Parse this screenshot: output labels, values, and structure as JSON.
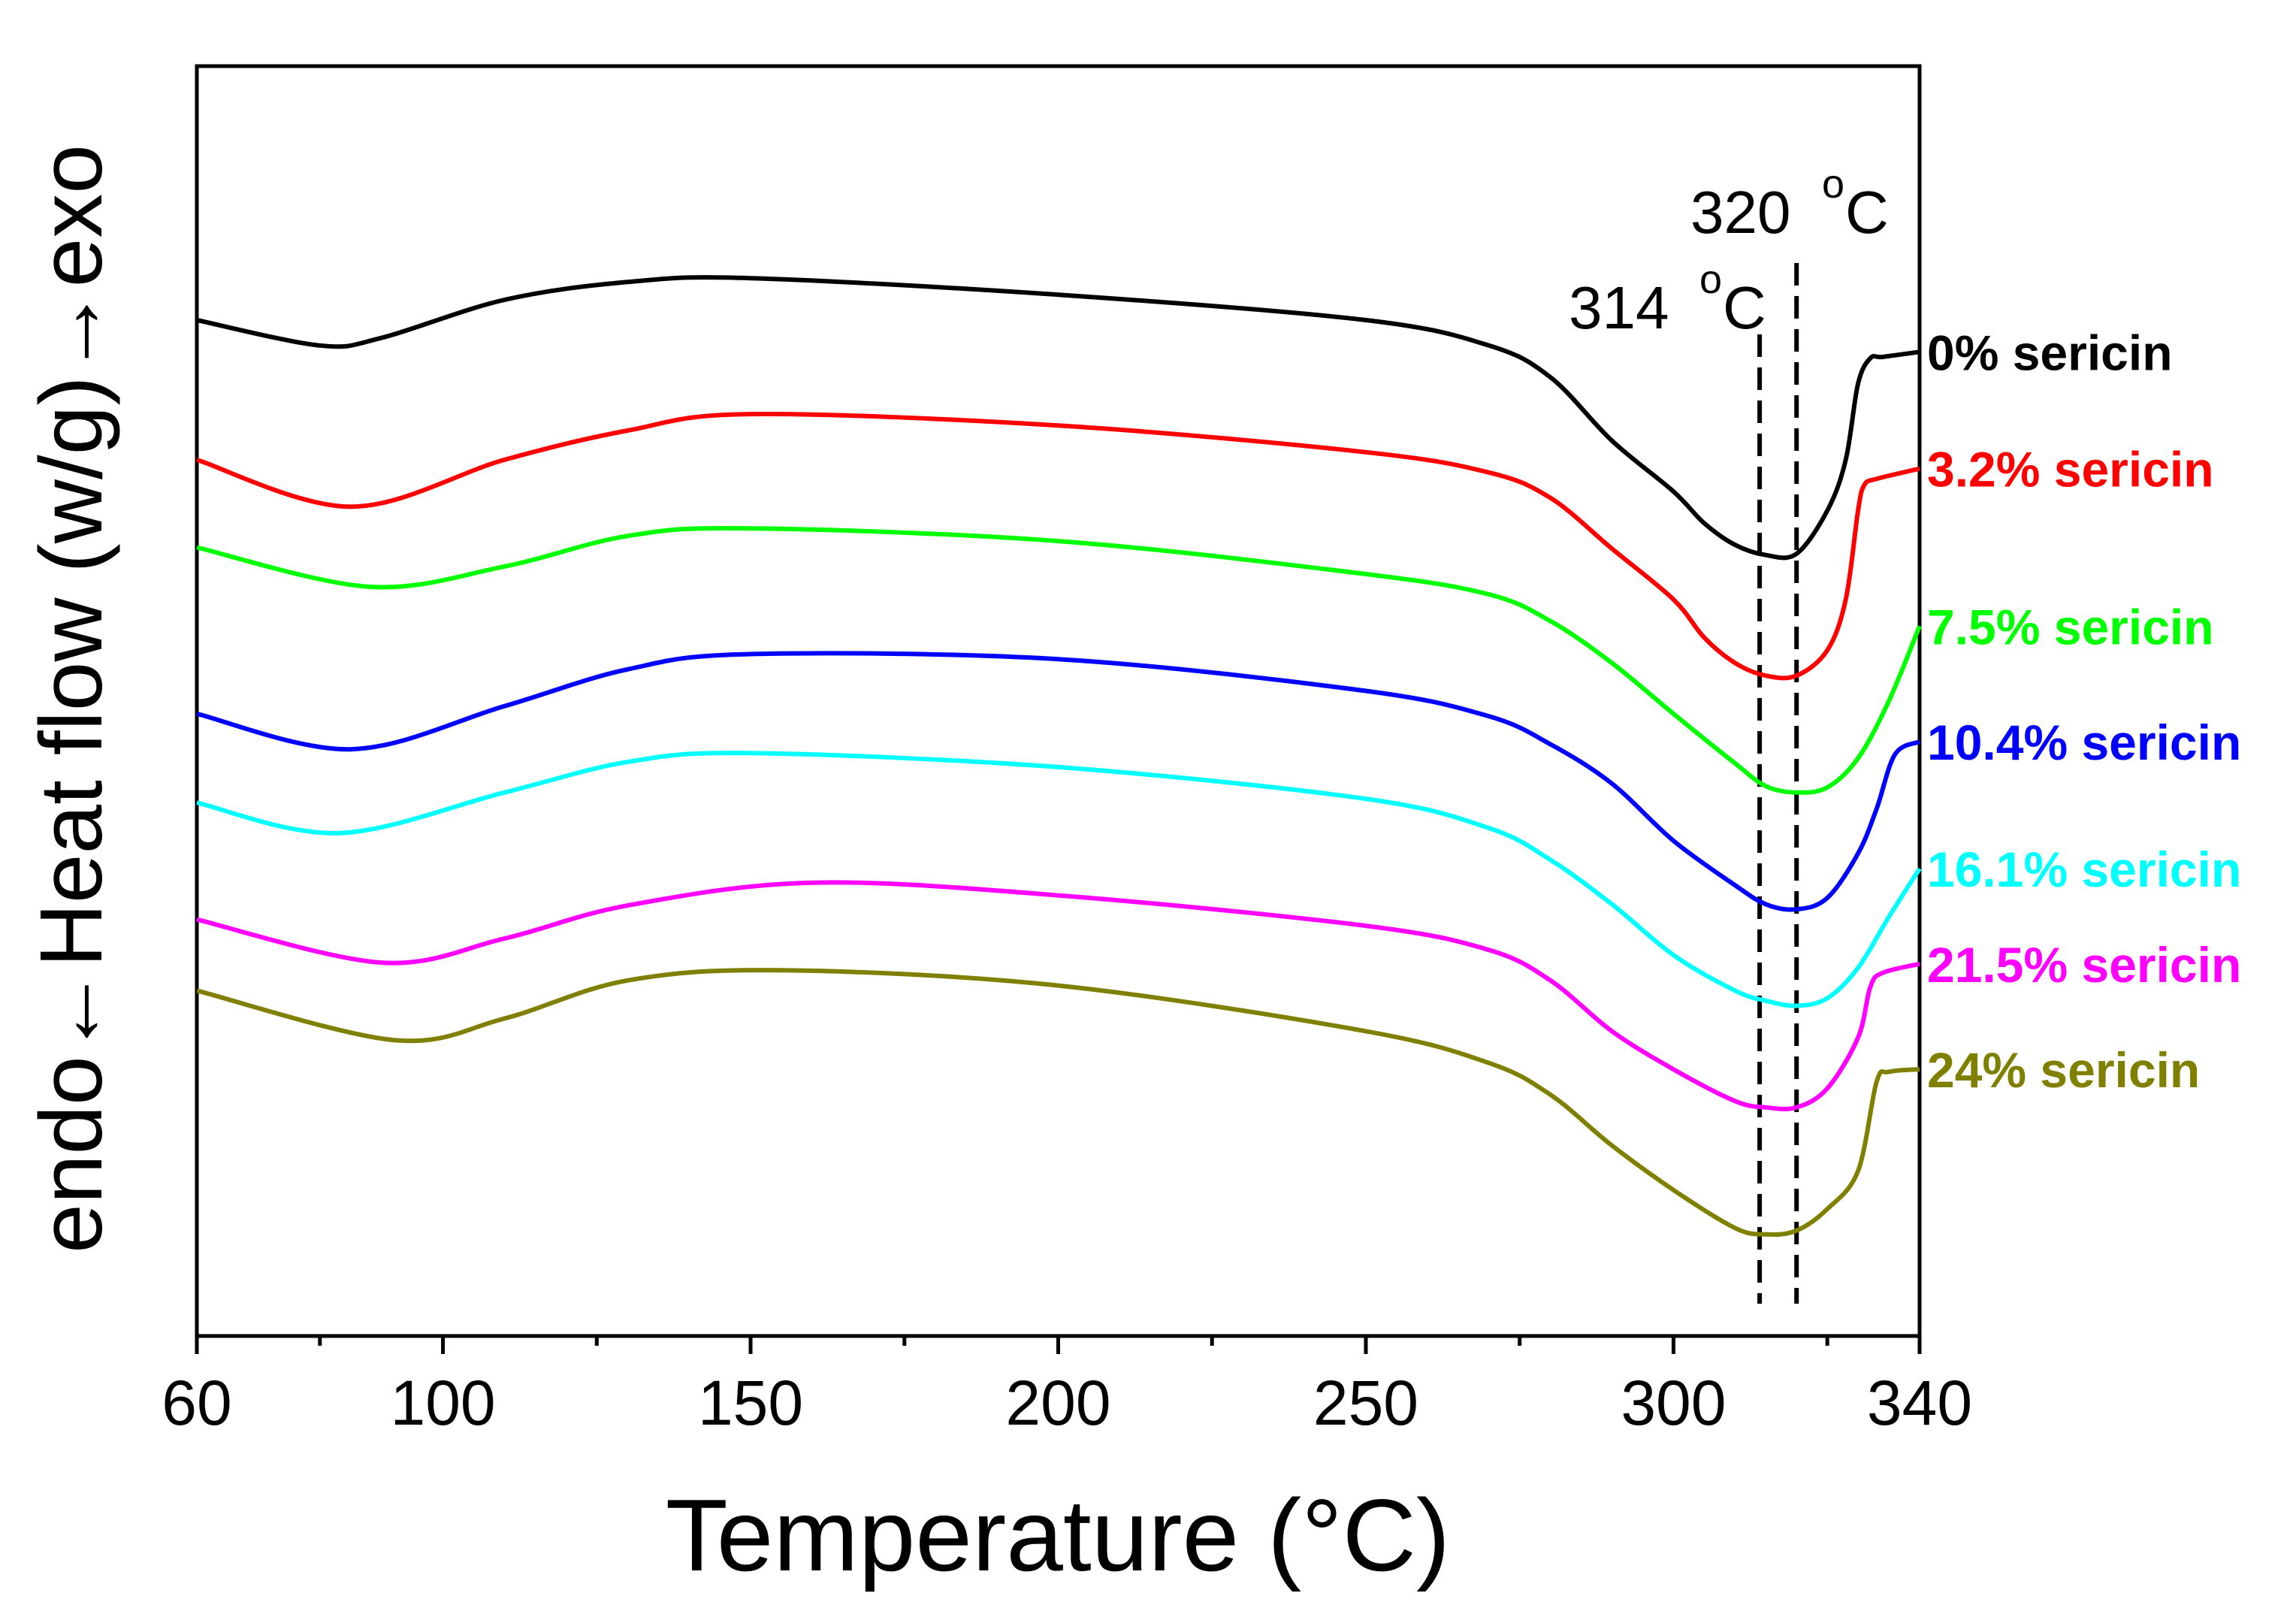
{
  "chart_data": {
    "type": "line",
    "title": "",
    "xlabel": "Temperature (°C)",
    "ylabel": "endo←Heat flow (w/g)→exo",
    "xlim": [
      60,
      340
    ],
    "ylim": [
      0,
      100
    ],
    "y_ticks_labeled": false,
    "x_ticks": [
      60,
      100,
      150,
      200,
      250,
      300,
      340
    ],
    "x_tick_labels": [
      "60",
      "100",
      "150",
      "200",
      "250",
      "300",
      "340"
    ],
    "x_minor_ticks": [
      80,
      125,
      175,
      225,
      275,
      325
    ],
    "grid": false,
    "legend": "right, inline labels",
    "annotations": [
      {
        "label": "314",
        "unit_sup": "o",
        "unit": "C",
        "x": 314,
        "style": "dashed"
      },
      {
        "label": "320",
        "unit_sup": "o",
        "unit": "C",
        "x": 320,
        "style": "dashed"
      }
    ],
    "series": [
      {
        "name": "0% sericin",
        "color": "#000000",
        "x": [
          60,
          80,
          90,
          110,
          130,
          150,
          200,
          250,
          270,
          280,
          290,
          300,
          305,
          310,
          315,
          320,
          325,
          328,
          330,
          332,
          334,
          340
        ],
        "y": [
          80,
          78.0,
          78.6,
          81.6,
          83.0,
          83.3,
          82.0,
          80.0,
          78.0,
          75.5,
          70.5,
          66.5,
          64.0,
          62.3,
          61.5,
          61.6,
          65.0,
          69.0,
          75.0,
          77.0,
          77.1,
          77.5
        ]
      },
      {
        "name": "3.2% sericin",
        "color": "#ff0000",
        "x": [
          60,
          85,
          110,
          130,
          150,
          200,
          250,
          270,
          280,
          290,
          300,
          305,
          310,
          315,
          320,
          325,
          328,
          330,
          331,
          333,
          340
        ],
        "y": [
          69,
          65.3,
          69.0,
          71.3,
          72.6,
          71.7,
          69.6,
          68.0,
          66.0,
          62.0,
          58.0,
          55.0,
          53.0,
          52.0,
          52.0,
          54.0,
          58.0,
          65.0,
          67.0,
          67.5,
          68.3
        ]
      },
      {
        "name": "7.5% sericin",
        "color": "#00ff00",
        "x": [
          60,
          88,
          110,
          130,
          150,
          200,
          250,
          270,
          280,
          290,
          300,
          310,
          315,
          320,
          325,
          330,
          335,
          340
        ],
        "y": [
          62.1,
          59.0,
          60.6,
          63.0,
          63.6,
          62.6,
          60.0,
          58.4,
          56.3,
          53.0,
          49.0,
          45.1,
          43.3,
          42.8,
          43.2,
          45.5,
          50.0,
          55.9
        ]
      },
      {
        "name": "10.4% sericin",
        "color": "#0000ff",
        "x": [
          60,
          85,
          110,
          130,
          150,
          200,
          250,
          270,
          280,
          290,
          300,
          310,
          315,
          320,
          325,
          330,
          333,
          336,
          340
        ],
        "y": [
          49.0,
          46.2,
          49.6,
          52.5,
          53.7,
          53.3,
          50.8,
          48.8,
          46.6,
          43.5,
          39.0,
          35.5,
          34.0,
          33.6,
          34.5,
          38.0,
          41.5,
          45.8,
          46.8
        ]
      },
      {
        "name": "16.1% sericin",
        "color": "#00ffff",
        "x": [
          60,
          83,
          110,
          130,
          150,
          200,
          250,
          270,
          280,
          290,
          300,
          310,
          315,
          320,
          325,
          330,
          335,
          340
        ],
        "y": [
          42.0,
          39.6,
          42.8,
          45.2,
          45.9,
          44.8,
          42.3,
          40.0,
          37.5,
          34.0,
          30.0,
          27.2,
          26.4,
          26.0,
          26.6,
          29.0,
          33.0,
          36.8
        ]
      },
      {
        "name": "21.5% sericin",
        "color": "#ff00ff",
        "x": [
          60,
          90,
          110,
          130,
          160,
          200,
          250,
          270,
          280,
          290,
          300,
          310,
          315,
          320,
          325,
          330,
          332,
          334,
          340
        ],
        "y": [
          32.8,
          29.4,
          31.3,
          33.9,
          35.7,
          34.7,
          32.3,
          30.4,
          28.0,
          24.0,
          21.0,
          18.5,
          18.0,
          18.0,
          19.5,
          23.5,
          27.5,
          28.6,
          29.3
        ]
      },
      {
        "name": "24% sericin",
        "color": "#808000",
        "x": [
          60,
          92,
          110,
          130,
          155,
          200,
          250,
          270,
          280,
          290,
          300,
          310,
          315,
          320,
          325,
          330,
          333,
          335,
          340
        ],
        "y": [
          27.2,
          23.3,
          25.0,
          28.0,
          28.8,
          27.6,
          24.0,
          21.5,
          19.0,
          15.0,
          11.5,
          8.5,
          8.0,
          8.3,
          10.0,
          13.0,
          20.0,
          20.8,
          21.0
        ]
      }
    ]
  }
}
